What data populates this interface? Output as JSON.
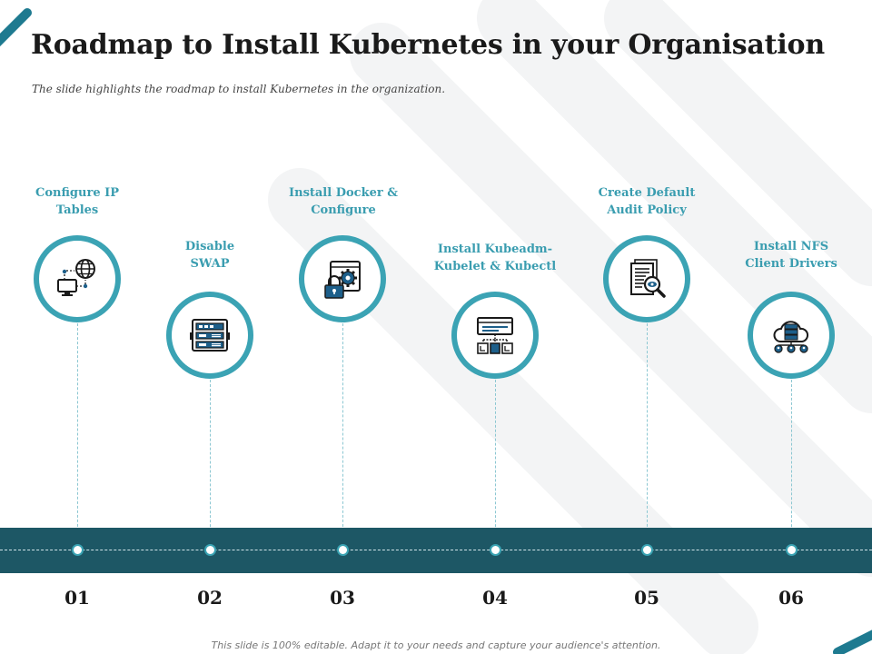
{
  "title": "Roadmap to Install Kubernetes in your Organisation",
  "subtitle": "The slide highlights the roadmap to install Kubernetes in the organization.",
  "footer": "This slide is 100% editable. Adapt it to your needs and capture your audience's attention.",
  "colors": {
    "accent": "#3ba3b4",
    "band": "#1d5765",
    "label": "#3a9db0"
  },
  "steps": [
    {
      "number": "01",
      "label_line1": "Configure IP",
      "label_line2": "Tables",
      "icon": "network-computer-globe-icon"
    },
    {
      "number": "02",
      "label_line1": "Disable",
      "label_line2": "SWAP",
      "icon": "server-rack-icon"
    },
    {
      "number": "03",
      "label_line1": "Install Docker &",
      "label_line2": "Configure",
      "icon": "lock-gear-window-icon"
    },
    {
      "number": "04",
      "label_line1": "Install Kubeadm-",
      "label_line2": "Kubelet & Kubectl",
      "icon": "hierarchy-window-icon"
    },
    {
      "number": "05",
      "label_line1": "Create Default",
      "label_line2": "Audit Policy",
      "icon": "document-magnifier-icon"
    },
    {
      "number": "06",
      "label_line1": "Install NFS",
      "label_line2": "Client Drivers",
      "icon": "cloud-server-users-icon"
    }
  ]
}
